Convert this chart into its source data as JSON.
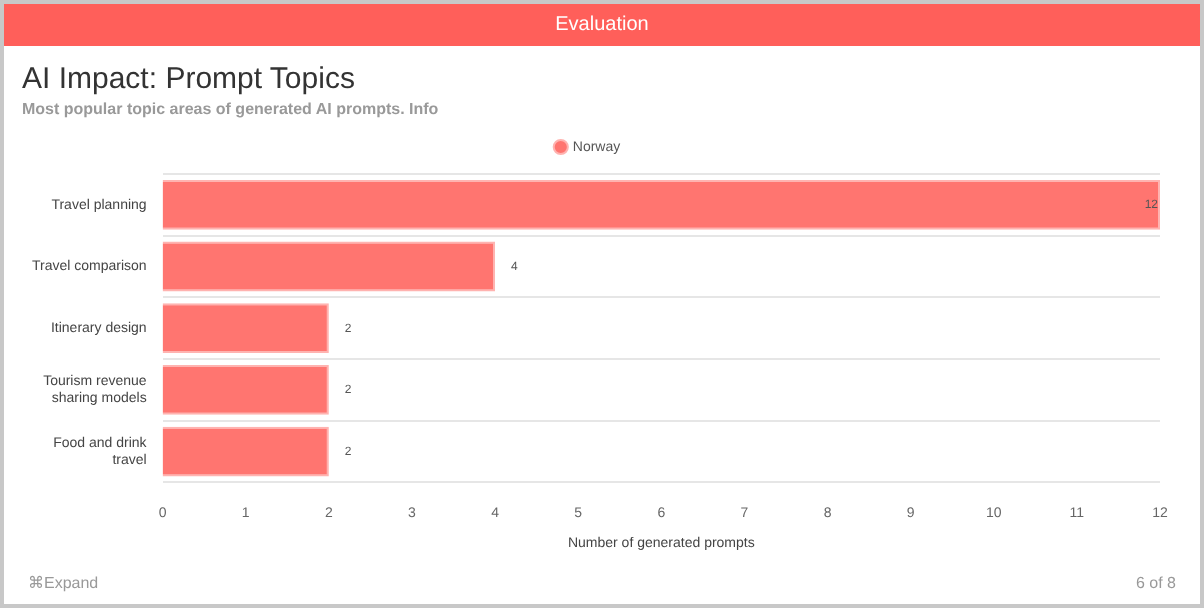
{
  "chart_data": {
    "type": "bar",
    "orientation": "horizontal",
    "title": "AI Impact: Prompt Topics",
    "subtitle": "Most popular topic areas of generated AI prompts. Info",
    "xlabel": "Number of generated prompts",
    "categories": [
      "Travel planning",
      "Travel comparison",
      "Itinerary design",
      "Tourism revenue sharing models",
      "Food and drink travel"
    ],
    "series": [
      {
        "name": "Norway",
        "color": "#ff7570",
        "values": [
          12,
          4,
          2,
          2,
          2
        ]
      }
    ],
    "xlim": [
      0,
      12
    ],
    "xticks": [
      0,
      1,
      2,
      3,
      4,
      5,
      6,
      7,
      8,
      9,
      10,
      11,
      12
    ],
    "grid": "y",
    "legend": "top",
    "data_labels": true,
    "annotations": [
      "Evaluation",
      "⌘Expand",
      "6 of 8"
    ]
  }
}
